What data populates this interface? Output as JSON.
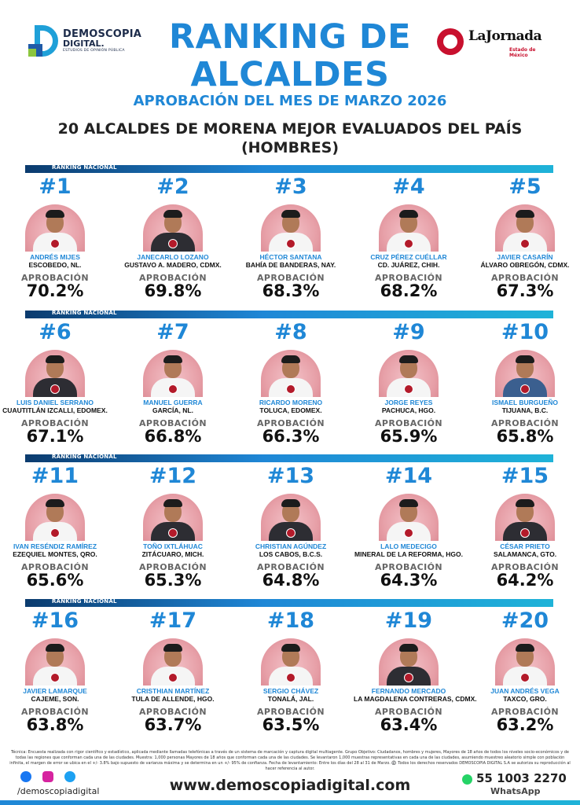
{
  "header": {
    "brand_left": {
      "line1": "DEMOSCOPIA",
      "line2": "DIGITAL.",
      "line3": "ESTUDIOS DE OPINIÓN PÚBLICA"
    },
    "brand_right": {
      "name": "LaJornada",
      "sub": "Estado de México"
    },
    "title_line1": "RANKING DE",
    "title_line2": "ALCALDES",
    "subtitle": "APROBACIÓN DEL MES DE MARZO 2026",
    "headline_line1": "20 ALCALDES DE MORENA MEJOR EVALUADOS DEL PAÍS",
    "headline_line2": "(HOMBRES)"
  },
  "section_label": "RANKING NACIONAL",
  "approval_label": "APROBACIÓN",
  "mayors": [
    {
      "rank": "#1",
      "name": "ANDRÉS MIJES",
      "city": "ESCOBEDO, NL.",
      "approval": "70.2%"
    },
    {
      "rank": "#2",
      "name": "JANECARLO LOZANO",
      "city": "GUSTAVO A. MADERO, CDMX.",
      "approval": "69.8%"
    },
    {
      "rank": "#3",
      "name": "HÉCTOR SANTANA",
      "city": "BAHÍA DE BANDERAS, NAY.",
      "approval": "68.3%"
    },
    {
      "rank": "#4",
      "name": "CRUZ PÉREZ CUÉLLAR",
      "city": "CD. JUÁREZ, CHIH.",
      "approval": "68.2%"
    },
    {
      "rank": "#5",
      "name": "JAVIER CASARÍN",
      "city": "ÁLVARO OBREGÓN, CDMX.",
      "approval": "67.3%"
    },
    {
      "rank": "#6",
      "name": "LUIS DANIEL SERRANO",
      "city": "CUAUTITLÁN IZCALLI, EDOMEX.",
      "approval": "67.1%"
    },
    {
      "rank": "#7",
      "name": "MANUEL GUERRA",
      "city": "GARCÍA, NL.",
      "approval": "66.8%"
    },
    {
      "rank": "#8",
      "name": "RICARDO MORENO",
      "city": "TOLUCA, EDOMEX.",
      "approval": "66.3%"
    },
    {
      "rank": "#9",
      "name": "JORGE REYES",
      "city": "PACHUCA, HGO.",
      "approval": "65.9%"
    },
    {
      "rank": "#10",
      "name": "ISMAEL BURGUEÑO",
      "city": "TIJUANA, B.C.",
      "approval": "65.8%"
    },
    {
      "rank": "#11",
      "name": "IVAN RESÉNDIZ RAMÍREZ",
      "city": "EZEQUIEL MONTES, QRO.",
      "approval": "65.6%"
    },
    {
      "rank": "#12",
      "name": "TOÑO IXTLÁHUAC",
      "city": "ZITÁCUARO, MICH.",
      "approval": "65.3%"
    },
    {
      "rank": "#13",
      "name": "CHRISTIAN AGÚNDEZ",
      "city": "LOS CABOS, B.C.S.",
      "approval": "64.8%"
    },
    {
      "rank": "#14",
      "name": "LALO MEDECIGO",
      "city": "MINERAL DE LA REFORMA, HGO.",
      "approval": "64.3%"
    },
    {
      "rank": "#15",
      "name": "CÉSAR PRIETO",
      "city": "SALAMANCA, GTO.",
      "approval": "64.2%"
    },
    {
      "rank": "#16",
      "name": "JAVIER LAMARQUE",
      "city": "CAJEME, SON.",
      "approval": "63.8%"
    },
    {
      "rank": "#17",
      "name": "CRISTHIAN MARTÍNEZ",
      "city": "TULA DE ALLENDE, HGO.",
      "approval": "63.7%"
    },
    {
      "rank": "#18",
      "name": "SERGIO CHÁVEZ",
      "city": "TONALÁ, JAL.",
      "approval": "63.5%"
    },
    {
      "rank": "#19",
      "name": "FERNANDO MERCADO",
      "city": "LA MAGDALENA CONTRERAS, CDMX.",
      "approval": "63.4%"
    },
    {
      "rank": "#20",
      "name": "JUAN ANDRÉS VEGA",
      "city": "TAXCO, GRO.",
      "approval": "63.2%"
    }
  ],
  "footer": {
    "disclaimer": "Técnica: Encuesta realizada con rigor científico y estadístico, aplicada mediante llamadas telefónicas a través de un sistema de marcación y captura digital multiagente. Grupo Objetivo: Ciudadanos, hombres y mujeres, Mayores de 18 años de todos los niveles socio-económicos y de todas las regiones que conforman cada una de las ciudades. Muestra: 1,000 personas Mayores de 18 años que conforman cada una de las ciudades. Se levantaron 1,000 muestras representativas en cada una de las ciudades, asumiendo muestreo aleatorio simple con población infinita, el margen de error se ubica en el +/- 3.8% bajo supuesto de varianza máxima y se determina en un +/- 95% de confianza. Fecha de levantamiento: Entre los días del 28 al 31 de Marzo. ©️ Todos los derechos reservados DEMOSCOPIA DIGITAL S.A se autoriza su reproducción al hacer referencia al autor.",
    "handle": "/demoscopiadigital",
    "website": "www.demoscopiadigital.com",
    "phone": "55 1003 2270",
    "whatsapp_label": "WhatsApp"
  }
}
